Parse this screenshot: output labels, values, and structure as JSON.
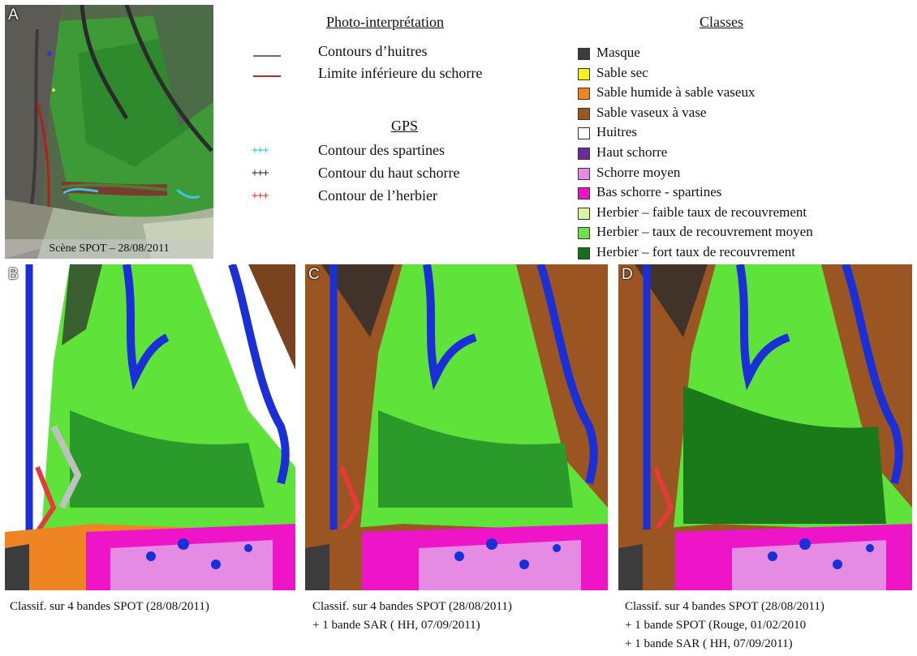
{
  "panels": {
    "a": {
      "label": "A",
      "scene_caption": "Scène SPOT – 28/08/2011"
    },
    "b": {
      "label": "B"
    },
    "c": {
      "label": "C"
    },
    "d": {
      "label": "D"
    }
  },
  "photo_interpretation": {
    "heading": "Photo-interprétation",
    "items": [
      {
        "label": "Contours d’huitres",
        "color": "#6e6e6e"
      },
      {
        "label": "Limite inférieure du schorre",
        "color": "#c0262b"
      }
    ]
  },
  "gps": {
    "heading": "GPS",
    "items": [
      {
        "label": "Contour des spartines",
        "symbol": "+++",
        "color": "#33c8e0"
      },
      {
        "label": "Contour du haut schorre",
        "symbol": "+++",
        "color": "#333333"
      },
      {
        "label": "Contour de l’herbier",
        "symbol": "+++",
        "color": "#e53a3a"
      }
    ]
  },
  "classes": {
    "heading": "Classes",
    "items": [
      {
        "label": "Masque",
        "color": "#3c3c3c"
      },
      {
        "label": "Sable sec",
        "color": "#f5f01e"
      },
      {
        "label": "Sable humide à sable vaseux",
        "color": "#ef8423"
      },
      {
        "label": "Sable vaseux à vase",
        "color": "#9a5523"
      },
      {
        "label": "Huitres",
        "color": "#ffffff"
      },
      {
        "label": "Haut schorre",
        "color": "#6a2e9c"
      },
      {
        "label": "Schorre moyen",
        "color": "#e58be3"
      },
      {
        "label": "Bas schorre - spartines",
        "color": "#ee15c9"
      },
      {
        "label": "Herbier – faible taux de recouvrement",
        "color": "#d8f7a0"
      },
      {
        "label": "Herbier – taux de recouvrement moyen",
        "color": "#6fe04a"
      },
      {
        "label": "Herbier – fort taux de recouvrement",
        "color": "#1a6e1a"
      }
    ]
  },
  "captions": {
    "b": [
      "Classif. sur 4 bandes SPOT (28/08/2011)"
    ],
    "c": [
      "Classif. sur 4 bandes SPOT (28/08/2011)",
      "+ 1 bande SAR ( HH, 07/09/2011)"
    ],
    "d": [
      "Classif. sur 4 bandes SPOT (28/08/2011)",
      "+ 1 bande SPOT (Rouge, 01/02/2010",
      "+ 1 bande SAR ( HH, 07/09/2011)"
    ]
  }
}
